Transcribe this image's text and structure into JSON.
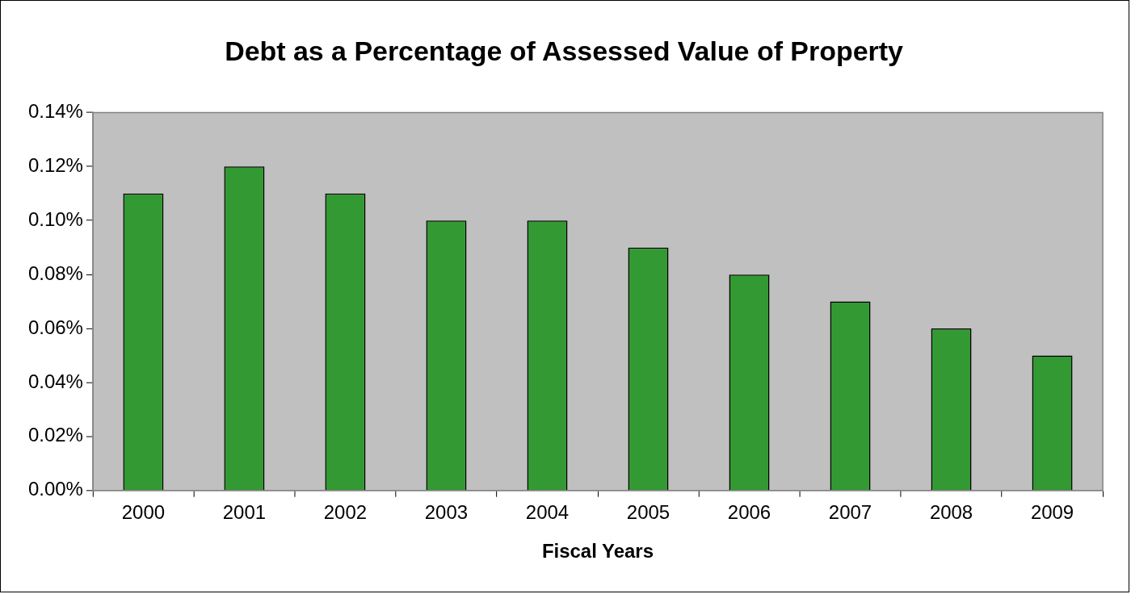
{
  "chart_data": {
    "type": "bar",
    "title": "Debt as a Percentage of Assessed Value of Property",
    "xlabel": "Fiscal Years",
    "categories": [
      "2000",
      "2001",
      "2002",
      "2003",
      "2004",
      "2005",
      "2006",
      "2007",
      "2008",
      "2009"
    ],
    "values": [
      0.11,
      0.12,
      0.11,
      0.1,
      0.1,
      0.09,
      0.08,
      0.07,
      0.06,
      0.05
    ],
    "color": "#339933",
    "ylim": [
      0,
      0.14
    ],
    "yticks": [
      {
        "value": 0,
        "label": "0.00%"
      },
      {
        "value": 0.02,
        "label": "0.02%"
      },
      {
        "value": 0.04,
        "label": "0.04%"
      },
      {
        "value": 0.06,
        "label": "0.06%"
      },
      {
        "value": 0.08,
        "label": "0.08%"
      },
      {
        "value": 0.1,
        "label": "0.10%"
      },
      {
        "value": 0.12,
        "label": "0.12%"
      },
      {
        "value": 0.14,
        "label": "0.14%"
      }
    ],
    "grid": false,
    "legend": false
  }
}
